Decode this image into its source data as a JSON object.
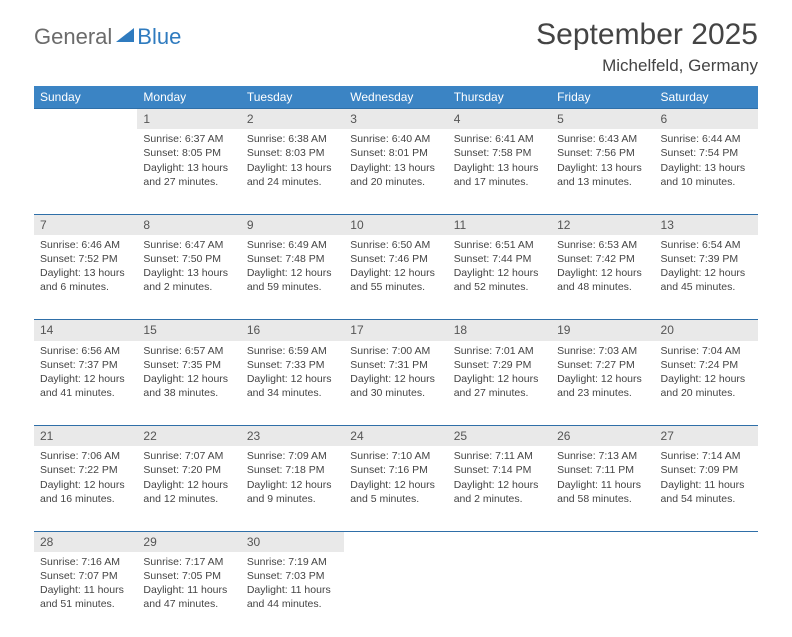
{
  "brand": {
    "part1": "General",
    "part2": "Blue"
  },
  "title": "September 2025",
  "location": "Michelfeld, Germany",
  "colors": {
    "header_bg": "#3b84c4",
    "rule": "#2f6fa8",
    "daynum_bg": "#e9e9e9",
    "text": "#444444",
    "logo_gray": "#6b6b6b",
    "logo_blue": "#2f7bbf"
  },
  "fonts": {
    "title_pt": 30,
    "location_pt": 17,
    "th_pt": 12,
    "daynum_pt": 12,
    "body_pt": 10.5
  },
  "day_headers": [
    "Sunday",
    "Monday",
    "Tuesday",
    "Wednesday",
    "Thursday",
    "Friday",
    "Saturday"
  ],
  "weeks": [
    {
      "nums": [
        "",
        "1",
        "2",
        "3",
        "4",
        "5",
        "6"
      ],
      "cells": [
        null,
        {
          "sunrise": "Sunrise: 6:37 AM",
          "sunset": "Sunset: 8:05 PM",
          "day1": "Daylight: 13 hours",
          "day2": "and 27 minutes."
        },
        {
          "sunrise": "Sunrise: 6:38 AM",
          "sunset": "Sunset: 8:03 PM",
          "day1": "Daylight: 13 hours",
          "day2": "and 24 minutes."
        },
        {
          "sunrise": "Sunrise: 6:40 AM",
          "sunset": "Sunset: 8:01 PM",
          "day1": "Daylight: 13 hours",
          "day2": "and 20 minutes."
        },
        {
          "sunrise": "Sunrise: 6:41 AM",
          "sunset": "Sunset: 7:58 PM",
          "day1": "Daylight: 13 hours",
          "day2": "and 17 minutes."
        },
        {
          "sunrise": "Sunrise: 6:43 AM",
          "sunset": "Sunset: 7:56 PM",
          "day1": "Daylight: 13 hours",
          "day2": "and 13 minutes."
        },
        {
          "sunrise": "Sunrise: 6:44 AM",
          "sunset": "Sunset: 7:54 PM",
          "day1": "Daylight: 13 hours",
          "day2": "and 10 minutes."
        }
      ]
    },
    {
      "nums": [
        "7",
        "8",
        "9",
        "10",
        "11",
        "12",
        "13"
      ],
      "cells": [
        {
          "sunrise": "Sunrise: 6:46 AM",
          "sunset": "Sunset: 7:52 PM",
          "day1": "Daylight: 13 hours",
          "day2": "and 6 minutes."
        },
        {
          "sunrise": "Sunrise: 6:47 AM",
          "sunset": "Sunset: 7:50 PM",
          "day1": "Daylight: 13 hours",
          "day2": "and 2 minutes."
        },
        {
          "sunrise": "Sunrise: 6:49 AM",
          "sunset": "Sunset: 7:48 PM",
          "day1": "Daylight: 12 hours",
          "day2": "and 59 minutes."
        },
        {
          "sunrise": "Sunrise: 6:50 AM",
          "sunset": "Sunset: 7:46 PM",
          "day1": "Daylight: 12 hours",
          "day2": "and 55 minutes."
        },
        {
          "sunrise": "Sunrise: 6:51 AM",
          "sunset": "Sunset: 7:44 PM",
          "day1": "Daylight: 12 hours",
          "day2": "and 52 minutes."
        },
        {
          "sunrise": "Sunrise: 6:53 AM",
          "sunset": "Sunset: 7:42 PM",
          "day1": "Daylight: 12 hours",
          "day2": "and 48 minutes."
        },
        {
          "sunrise": "Sunrise: 6:54 AM",
          "sunset": "Sunset: 7:39 PM",
          "day1": "Daylight: 12 hours",
          "day2": "and 45 minutes."
        }
      ]
    },
    {
      "nums": [
        "14",
        "15",
        "16",
        "17",
        "18",
        "19",
        "20"
      ],
      "cells": [
        {
          "sunrise": "Sunrise: 6:56 AM",
          "sunset": "Sunset: 7:37 PM",
          "day1": "Daylight: 12 hours",
          "day2": "and 41 minutes."
        },
        {
          "sunrise": "Sunrise: 6:57 AM",
          "sunset": "Sunset: 7:35 PM",
          "day1": "Daylight: 12 hours",
          "day2": "and 38 minutes."
        },
        {
          "sunrise": "Sunrise: 6:59 AM",
          "sunset": "Sunset: 7:33 PM",
          "day1": "Daylight: 12 hours",
          "day2": "and 34 minutes."
        },
        {
          "sunrise": "Sunrise: 7:00 AM",
          "sunset": "Sunset: 7:31 PM",
          "day1": "Daylight: 12 hours",
          "day2": "and 30 minutes."
        },
        {
          "sunrise": "Sunrise: 7:01 AM",
          "sunset": "Sunset: 7:29 PM",
          "day1": "Daylight: 12 hours",
          "day2": "and 27 minutes."
        },
        {
          "sunrise": "Sunrise: 7:03 AM",
          "sunset": "Sunset: 7:27 PM",
          "day1": "Daylight: 12 hours",
          "day2": "and 23 minutes."
        },
        {
          "sunrise": "Sunrise: 7:04 AM",
          "sunset": "Sunset: 7:24 PM",
          "day1": "Daylight: 12 hours",
          "day2": "and 20 minutes."
        }
      ]
    },
    {
      "nums": [
        "21",
        "22",
        "23",
        "24",
        "25",
        "26",
        "27"
      ],
      "cells": [
        {
          "sunrise": "Sunrise: 7:06 AM",
          "sunset": "Sunset: 7:22 PM",
          "day1": "Daylight: 12 hours",
          "day2": "and 16 minutes."
        },
        {
          "sunrise": "Sunrise: 7:07 AM",
          "sunset": "Sunset: 7:20 PM",
          "day1": "Daylight: 12 hours",
          "day2": "and 12 minutes."
        },
        {
          "sunrise": "Sunrise: 7:09 AM",
          "sunset": "Sunset: 7:18 PM",
          "day1": "Daylight: 12 hours",
          "day2": "and 9 minutes."
        },
        {
          "sunrise": "Sunrise: 7:10 AM",
          "sunset": "Sunset: 7:16 PM",
          "day1": "Daylight: 12 hours",
          "day2": "and 5 minutes."
        },
        {
          "sunrise": "Sunrise: 7:11 AM",
          "sunset": "Sunset: 7:14 PM",
          "day1": "Daylight: 12 hours",
          "day2": "and 2 minutes."
        },
        {
          "sunrise": "Sunrise: 7:13 AM",
          "sunset": "Sunset: 7:11 PM",
          "day1": "Daylight: 11 hours",
          "day2": "and 58 minutes."
        },
        {
          "sunrise": "Sunrise: 7:14 AM",
          "sunset": "Sunset: 7:09 PM",
          "day1": "Daylight: 11 hours",
          "day2": "and 54 minutes."
        }
      ]
    },
    {
      "nums": [
        "28",
        "29",
        "30",
        "",
        "",
        "",
        ""
      ],
      "cells": [
        {
          "sunrise": "Sunrise: 7:16 AM",
          "sunset": "Sunset: 7:07 PM",
          "day1": "Daylight: 11 hours",
          "day2": "and 51 minutes."
        },
        {
          "sunrise": "Sunrise: 7:17 AM",
          "sunset": "Sunset: 7:05 PM",
          "day1": "Daylight: 11 hours",
          "day2": "and 47 minutes."
        },
        {
          "sunrise": "Sunrise: 7:19 AM",
          "sunset": "Sunset: 7:03 PM",
          "day1": "Daylight: 11 hours",
          "day2": "and 44 minutes."
        },
        null,
        null,
        null,
        null
      ]
    }
  ]
}
